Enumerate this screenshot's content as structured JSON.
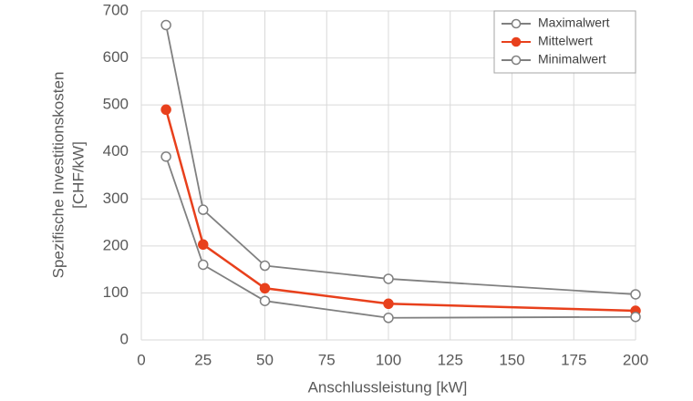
{
  "chart_data": {
    "type": "line",
    "x_label": "Anschlussleistung [kW]",
    "y_label": [
      "Spezifische Investitionskosten",
      "[CHF/kW]"
    ],
    "x": [
      10,
      25,
      50,
      100,
      200
    ],
    "series": [
      {
        "name": "Maximalwert",
        "color": "#808080",
        "marker": "open",
        "values": [
          670,
          277,
          158,
          130,
          97
        ]
      },
      {
        "name": "Mittelwert",
        "color": "#e8401c",
        "marker": "filled",
        "values": [
          490,
          203,
          110,
          77,
          62
        ]
      },
      {
        "name": "Minimalwert",
        "color": "#808080",
        "marker": "open",
        "values": [
          390,
          160,
          83,
          47,
          49
        ]
      }
    ],
    "xlim": [
      0,
      200
    ],
    "xticks": [
      0,
      25,
      50,
      75,
      100,
      125,
      150,
      175,
      200
    ],
    "ylim": [
      0,
      700
    ],
    "yticks": [
      0,
      100,
      200,
      300,
      400,
      500,
      600,
      700
    ],
    "grid": true,
    "legend": "upper-right"
  }
}
